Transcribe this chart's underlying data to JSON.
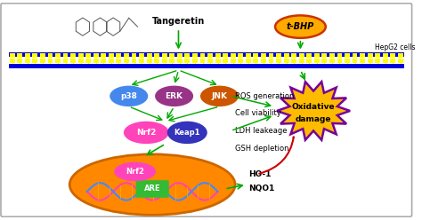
{
  "background_color": "#f0f0f0",
  "membrane_color_blue": "#0000dd",
  "membrane_color_yellow": "#ffff00",
  "tangeretin_label": "Tangeretin",
  "tbhp_label": "t-BHP",
  "hepg2_label": "HepG2 cells",
  "p38_color": "#4488ee",
  "erk_color": "#993388",
  "jnk_color": "#cc5500",
  "nrf2_color": "#ff44bb",
  "keap1_color": "#3333bb",
  "are_color": "#33bb33",
  "nucleus_color": "#ff8800",
  "nucleus_edge": "#cc6600",
  "oxidative_color": "#ffbb00",
  "oxidative_border": "#770099",
  "tbhp_ellipse_color": "#ffaa00",
  "tbhp_border": "#cc3300",
  "ros_lines": [
    "ROS generation",
    "Cell viability",
    "LDH leakeage",
    "GSH depletion"
  ],
  "bottom_labels": [
    "HO-1",
    "NQO1"
  ],
  "arrow_green": "#00aa00",
  "arrow_red": "#cc0000",
  "fig_bg": "#ffffff",
  "border_color": "#aaaaaa",
  "mol_color": "#555555",
  "text_color": "#000000",
  "dna_color1": "#ff44aa",
  "dna_color2": "#4488ff",
  "dna_bar_color": "#ffaa00"
}
